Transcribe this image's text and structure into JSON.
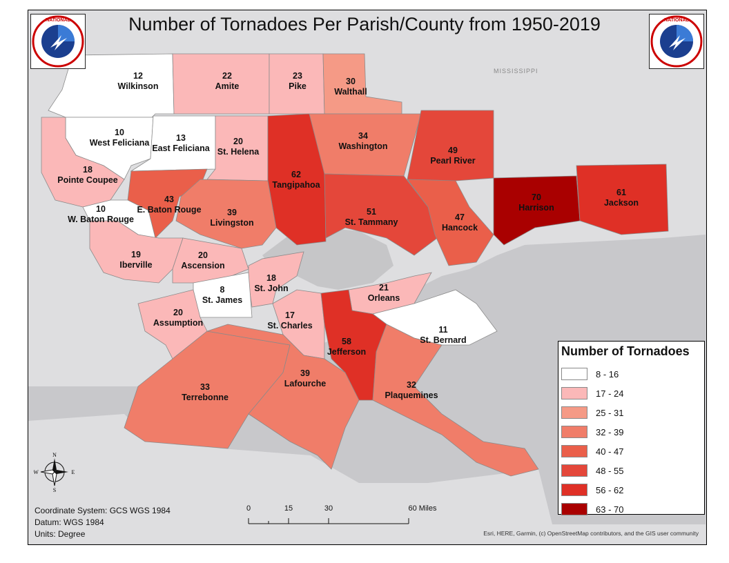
{
  "title": "Number of Tornadoes Per Parish/County from 1950-2019",
  "logo": {
    "text": "NATIONAL WEATHER SERVICE",
    "icon": "nws-logo-icon"
  },
  "state_label": "MISSISSIPPI",
  "parishes": [
    {
      "name": "Wilkinson",
      "count": "12"
    },
    {
      "name": "Amite",
      "count": "22"
    },
    {
      "name": "Pike",
      "count": "23"
    },
    {
      "name": "Walthall",
      "count": "30"
    },
    {
      "name": "West Feliciana",
      "count": "10"
    },
    {
      "name": "East Feliciana",
      "count": "13"
    },
    {
      "name": "St. Helena",
      "count": "20"
    },
    {
      "name": "Tangipahoa",
      "count": "62"
    },
    {
      "name": "Washington",
      "count": "34"
    },
    {
      "name": "Pearl River",
      "count": "49"
    },
    {
      "name": "Pointe Coupee",
      "count": "18"
    },
    {
      "name": "E. Baton Rouge",
      "count": "43"
    },
    {
      "name": "W. Baton Rouge",
      "count": "10"
    },
    {
      "name": "Livingston",
      "count": "39"
    },
    {
      "name": "St. Tammany",
      "count": "51"
    },
    {
      "name": "Hancock",
      "count": "47"
    },
    {
      "name": "Harrison",
      "count": "70"
    },
    {
      "name": "Jackson",
      "count": "61"
    },
    {
      "name": "Iberville",
      "count": "19"
    },
    {
      "name": "Ascension",
      "count": "20"
    },
    {
      "name": "St. John",
      "count": "18"
    },
    {
      "name": "St. James",
      "count": "8"
    },
    {
      "name": "Orleans",
      "count": "21"
    },
    {
      "name": "Assumption",
      "count": "20"
    },
    {
      "name": "St. Charles",
      "count": "17"
    },
    {
      "name": "St. Bernard",
      "count": "11"
    },
    {
      "name": "Jefferson",
      "count": "58"
    },
    {
      "name": "Terrebonne",
      "count": "33"
    },
    {
      "name": "Lafourche",
      "count": "39"
    },
    {
      "name": "Plaquemines",
      "count": "32"
    }
  ],
  "legend": {
    "title": "Number of Tornadoes",
    "classes": [
      {
        "label": "8 - 16",
        "color": "#ffffff"
      },
      {
        "label": "17 - 24",
        "color": "#fbb8b8"
      },
      {
        "label": "25 - 31",
        "color": "#f59a86"
      },
      {
        "label": "32 - 39",
        "color": "#f07d69"
      },
      {
        "label": "40 - 47",
        "color": "#ea5f4a"
      },
      {
        "label": "48 - 55",
        "color": "#e4473a"
      },
      {
        "label": "56 - 62",
        "color": "#df3026"
      },
      {
        "label": "63 - 70",
        "color": "#a90000"
      }
    ]
  },
  "colors": {
    "water": "#c9c9cc",
    "land_outside": "#dcdcde",
    "lake": "#c6c6c8"
  },
  "info": {
    "coordinate_system": "Coordinate System: GCS WGS 1984",
    "datum": "Datum: WGS 1984",
    "units": "Units: Degree"
  },
  "scale": {
    "ticks": [
      "0",
      "15",
      "30",
      "60 Miles"
    ]
  },
  "compass": {
    "n": "N",
    "s": "S",
    "e": "E",
    "w": "W",
    "icon": "north-arrow-icon"
  },
  "credits": "Esri, HERE, Garmin, (c) OpenStreetMap contributors, and the GIS user community"
}
